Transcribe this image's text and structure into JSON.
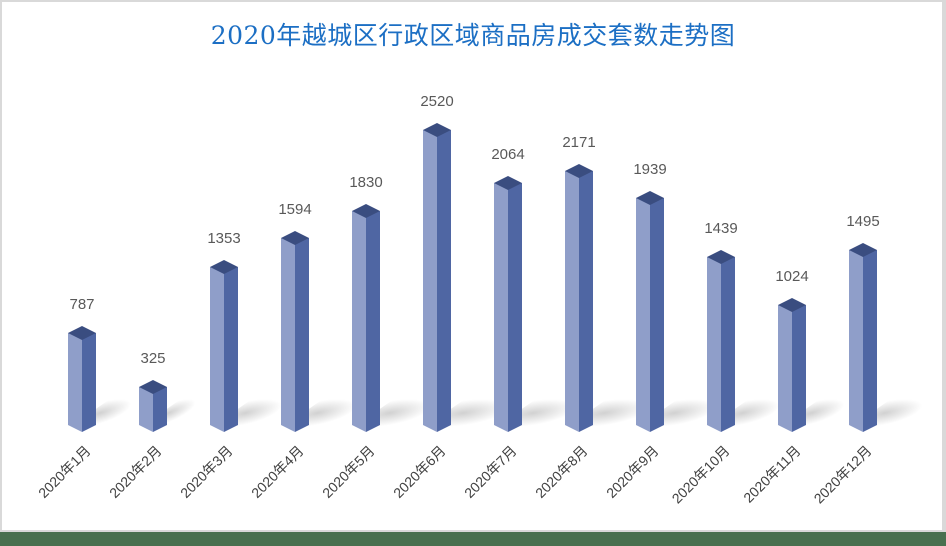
{
  "title": "2020年越城区行政区域商品房成交套数走势图",
  "colors": {
    "title": "#1c6fc4",
    "bar_light": "#8f9ec9",
    "bar_dark": "#4f66a3",
    "bar_top": "#3a4d80",
    "label": "#595959",
    "bottom_strip": "#48704f"
  },
  "chart_data": {
    "type": "bar",
    "title": "2020年越城区行政区域商品房成交套数走势图",
    "xlabel": "",
    "ylabel": "",
    "categories": [
      "2020年1月",
      "2020年2月",
      "2020年3月",
      "2020年4月",
      "2020年5月",
      "2020年6月",
      "2020年7月",
      "2020年8月",
      "2020年9月",
      "2020年10月",
      "2020年11月",
      "2020年12月"
    ],
    "values": [
      787,
      325,
      1353,
      1594,
      1830,
      2520,
      2064,
      2171,
      1939,
      1439,
      1024,
      1495
    ],
    "data_labels": [
      "787",
      "325",
      "1353",
      "1594",
      "1830",
      "2520",
      "2064",
      "2171",
      "1939",
      "1439",
      "1024",
      "1495"
    ],
    "style": "3d-column",
    "grid": false,
    "legend": "none",
    "ylim": [
      0,
      2520
    ]
  }
}
